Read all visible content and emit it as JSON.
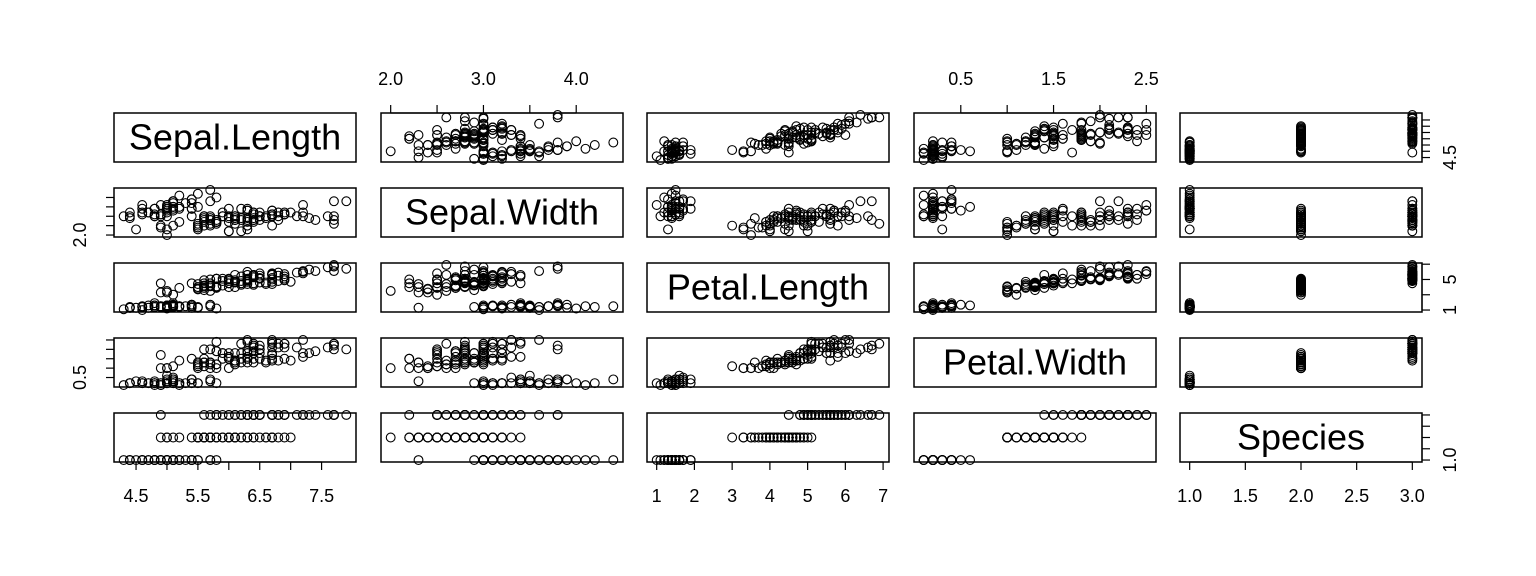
{
  "chart_data": {
    "type": "scatter",
    "subtype": "scatterplot-matrix",
    "variables": [
      "Sepal.Length",
      "Sepal.Width",
      "Petal.Length",
      "Petal.Width",
      "Species"
    ],
    "ranges": {
      "Sepal.Length": [
        4.3,
        7.9
      ],
      "Sepal.Width": [
        2.0,
        4.4
      ],
      "Petal.Length": [
        1.0,
        6.9
      ],
      "Petal.Width": [
        0.1,
        2.5
      ],
      "Species": [
        1,
        3
      ]
    },
    "axes": {
      "bottom": [
        {
          "variable": "Sepal.Length",
          "ticks": [
            4.5,
            5,
            5.5,
            6,
            6.5,
            7,
            7.5
          ],
          "labels": [
            "4.5",
            "",
            "5.5",
            "",
            "6.5",
            "",
            "7.5"
          ]
        },
        null,
        {
          "variable": "Petal.Length",
          "ticks": [
            1,
            2,
            3,
            4,
            5,
            6,
            7
          ],
          "labels": [
            "1",
            "2",
            "3",
            "4",
            "5",
            "6",
            "7"
          ]
        },
        null,
        {
          "variable": "Species",
          "ticks": [
            1,
            1.5,
            2,
            2.5,
            3
          ],
          "labels": [
            "1.0",
            "1.5",
            "2.0",
            "2.5",
            "3.0"
          ]
        }
      ],
      "top": [
        null,
        {
          "variable": "Sepal.Width",
          "ticks": [
            2,
            2.5,
            3,
            3.5,
            4
          ],
          "labels": [
            "2.0",
            "",
            "3.0",
            "",
            "4.0"
          ]
        },
        null,
        {
          "variable": "Petal.Width",
          "ticks": [
            0.5,
            1,
            1.5,
            2,
            2.5
          ],
          "labels": [
            "0.5",
            "",
            "1.5",
            "",
            "2.5"
          ]
        },
        null
      ],
      "left": [
        null,
        {
          "variable": "Sepal.Width",
          "ticks": [
            2,
            2.5,
            3,
            3.5,
            4
          ],
          "labels": [
            "2.0",
            "",
            "",
            "",
            ""
          ]
        },
        null,
        {
          "variable": "Petal.Width",
          "ticks": [
            0.5,
            1,
            1.5,
            2,
            2.5
          ],
          "labels": [
            "0.5",
            "",
            "",
            "",
            ""
          ]
        },
        null
      ],
      "right": [
        {
          "variable": "Sepal.Length",
          "ticks": [
            4.5,
            5,
            5.5,
            6,
            6.5,
            7,
            7.5
          ],
          "labels": [
            "4.5",
            "",
            "",
            "",
            "",
            "",
            ""
          ]
        },
        null,
        {
          "variable": "Petal.Length",
          "ticks": [
            1,
            3,
            5,
            7
          ],
          "labels": [
            "1",
            "",
            "5",
            ""
          ]
        },
        null,
        {
          "variable": "Species",
          "ticks": [
            1,
            1.5,
            2,
            2.5,
            3
          ],
          "labels": [
            "1.0",
            "",
            "",
            "",
            ""
          ]
        }
      ]
    },
    "data": {
      "Sepal.Length": [
        5.1,
        4.9,
        4.7,
        4.6,
        5.0,
        5.4,
        4.6,
        5.0,
        4.4,
        4.9,
        5.4,
        4.8,
        4.8,
        4.3,
        5.8,
        5.7,
        5.4,
        5.1,
        5.7,
        5.1,
        5.4,
        5.1,
        4.6,
        5.1,
        4.8,
        5.0,
        5.0,
        5.2,
        5.2,
        4.7,
        4.8,
        5.4,
        5.2,
        5.5,
        4.9,
        5.0,
        5.5,
        4.9,
        4.4,
        5.1,
        5.0,
        4.5,
        4.4,
        5.0,
        5.1,
        4.8,
        5.1,
        4.6,
        5.3,
        5.0,
        7.0,
        6.4,
        6.9,
        5.5,
        6.5,
        5.7,
        6.3,
        4.9,
        6.6,
        5.2,
        5.0,
        5.9,
        6.0,
        6.1,
        5.6,
        6.7,
        5.6,
        5.8,
        6.2,
        5.6,
        5.9,
        6.1,
        6.3,
        6.1,
        6.4,
        6.6,
        6.8,
        6.7,
        6.0,
        5.7,
        5.5,
        5.5,
        5.8,
        6.0,
        5.4,
        6.0,
        6.7,
        6.3,
        5.6,
        5.5,
        5.5,
        6.1,
        5.8,
        5.0,
        5.6,
        5.7,
        5.7,
        6.2,
        5.1,
        5.7,
        6.3,
        5.8,
        7.1,
        6.3,
        6.5,
        7.6,
        4.9,
        7.3,
        6.7,
        7.2,
        6.5,
        6.4,
        6.8,
        5.7,
        5.8,
        6.4,
        6.5,
        7.7,
        7.7,
        6.0,
        6.9,
        5.6,
        7.7,
        6.3,
        6.7,
        7.2,
        6.2,
        6.1,
        6.4,
        7.2,
        7.4,
        7.9,
        6.4,
        6.3,
        6.1,
        7.7,
        6.3,
        6.4,
        6.0,
        6.9,
        6.7,
        6.9,
        5.8,
        6.8,
        6.7,
        6.7,
        6.3,
        6.5,
        6.2,
        5.9
      ],
      "Sepal.Width": [
        3.5,
        3.0,
        3.2,
        3.1,
        3.6,
        3.9,
        3.4,
        3.4,
        2.9,
        3.1,
        3.7,
        3.4,
        3.0,
        3.0,
        4.0,
        4.4,
        3.9,
        3.5,
        3.8,
        3.8,
        3.4,
        3.7,
        3.6,
        3.3,
        3.4,
        3.0,
        3.4,
        3.5,
        3.4,
        3.2,
        3.1,
        3.4,
        4.1,
        4.2,
        3.1,
        3.2,
        3.5,
        3.6,
        3.0,
        3.4,
        3.5,
        2.3,
        3.2,
        3.5,
        3.8,
        3.0,
        3.8,
        3.2,
        3.7,
        3.3,
        3.2,
        3.2,
        3.1,
        2.3,
        2.8,
        2.8,
        3.3,
        2.4,
        2.9,
        2.7,
        2.0,
        3.0,
        2.2,
        2.9,
        2.9,
        3.1,
        3.0,
        2.7,
        2.2,
        2.5,
        3.2,
        2.8,
        2.5,
        2.8,
        2.9,
        3.0,
        2.8,
        3.0,
        2.9,
        2.6,
        2.4,
        2.4,
        2.7,
        2.7,
        3.0,
        3.4,
        3.1,
        2.3,
        3.0,
        2.5,
        2.6,
        3.0,
        2.6,
        2.3,
        2.7,
        3.0,
        2.9,
        2.9,
        2.5,
        2.8,
        3.3,
        2.7,
        3.0,
        2.9,
        3.0,
        3.0,
        2.5,
        2.9,
        2.5,
        3.6,
        3.2,
        2.7,
        3.0,
        2.5,
        2.8,
        3.2,
        3.0,
        3.8,
        2.6,
        2.2,
        3.2,
        2.8,
        2.8,
        2.7,
        3.3,
        3.2,
        2.8,
        3.0,
        2.8,
        3.0,
        2.8,
        3.8,
        2.8,
        2.8,
        2.6,
        3.0,
        3.4,
        3.1,
        3.0,
        3.1,
        3.1,
        3.1,
        2.7,
        3.2,
        3.3,
        3.0,
        2.5,
        3.0,
        3.4,
        3.0
      ],
      "Petal.Length": [
        1.4,
        1.4,
        1.3,
        1.5,
        1.4,
        1.7,
        1.4,
        1.5,
        1.4,
        1.5,
        1.5,
        1.6,
        1.4,
        1.1,
        1.2,
        1.5,
        1.3,
        1.4,
        1.7,
        1.5,
        1.7,
        1.5,
        1.0,
        1.7,
        1.9,
        1.6,
        1.6,
        1.5,
        1.4,
        1.6,
        1.6,
        1.5,
        1.5,
        1.4,
        1.5,
        1.2,
        1.3,
        1.4,
        1.3,
        1.5,
        1.3,
        1.3,
        1.3,
        1.6,
        1.9,
        1.4,
        1.6,
        1.4,
        1.5,
        1.4,
        4.7,
        4.5,
        4.9,
        4.0,
        4.6,
        4.5,
        4.7,
        3.3,
        4.6,
        3.9,
        3.5,
        4.2,
        4.0,
        4.7,
        3.6,
        4.4,
        4.5,
        4.1,
        4.5,
        3.9,
        4.8,
        4.0,
        4.9,
        4.7,
        4.3,
        4.4,
        4.8,
        5.0,
        4.5,
        3.5,
        3.8,
        3.7,
        3.9,
        5.1,
        4.5,
        4.5,
        4.7,
        4.4,
        4.1,
        4.0,
        4.4,
        4.6,
        4.0,
        3.3,
        4.2,
        4.2,
        4.2,
        4.3,
        3.0,
        4.1,
        6.0,
        5.1,
        5.9,
        5.6,
        5.8,
        6.6,
        4.5,
        6.3,
        5.8,
        6.1,
        5.1,
        5.3,
        5.5,
        5.0,
        5.1,
        5.3,
        5.5,
        6.7,
        6.9,
        5.0,
        5.7,
        4.9,
        6.7,
        4.9,
        5.7,
        6.0,
        4.8,
        4.9,
        5.6,
        5.8,
        6.1,
        6.4,
        5.6,
        5.1,
        5.6,
        6.1,
        5.6,
        5.5,
        4.8,
        5.4,
        5.6,
        5.1,
        5.1,
        5.9,
        5.7,
        5.2,
        5.0,
        5.2,
        5.4,
        5.1
      ],
      "Petal.Width": [
        0.2,
        0.2,
        0.2,
        0.2,
        0.2,
        0.4,
        0.3,
        0.2,
        0.2,
        0.1,
        0.2,
        0.2,
        0.1,
        0.1,
        0.2,
        0.4,
        0.4,
        0.3,
        0.3,
        0.3,
        0.2,
        0.4,
        0.2,
        0.5,
        0.2,
        0.2,
        0.4,
        0.2,
        0.2,
        0.2,
        0.2,
        0.4,
        0.1,
        0.2,
        0.2,
        0.2,
        0.2,
        0.1,
        0.2,
        0.2,
        0.3,
        0.3,
        0.2,
        0.6,
        0.4,
        0.3,
        0.2,
        0.2,
        0.2,
        0.2,
        1.4,
        1.5,
        1.5,
        1.3,
        1.5,
        1.3,
        1.6,
        1.0,
        1.3,
        1.4,
        1.0,
        1.5,
        1.0,
        1.4,
        1.3,
        1.4,
        1.5,
        1.0,
        1.5,
        1.1,
        1.8,
        1.3,
        1.5,
        1.2,
        1.3,
        1.4,
        1.4,
        1.7,
        1.5,
        1.0,
        1.1,
        1.0,
        1.2,
        1.6,
        1.5,
        1.6,
        1.5,
        1.3,
        1.3,
        1.3,
        1.2,
        1.4,
        1.2,
        1.0,
        1.3,
        1.2,
        1.3,
        1.3,
        1.1,
        1.3,
        2.5,
        1.9,
        2.1,
        1.8,
        2.2,
        2.1,
        1.7,
        1.8,
        1.8,
        2.5,
        2.0,
        1.9,
        2.1,
        2.0,
        2.4,
        2.3,
        1.8,
        2.2,
        2.3,
        1.5,
        2.3,
        2.0,
        2.0,
        1.8,
        2.1,
        1.8,
        1.8,
        1.8,
        2.1,
        1.6,
        1.9,
        2.0,
        2.2,
        1.5,
        1.4,
        2.3,
        2.4,
        1.8,
        1.8,
        2.1,
        2.4,
        2.3,
        1.9,
        2.3,
        2.5,
        2.3,
        1.9,
        2.0,
        2.3,
        1.8
      ],
      "Species": [
        1,
        1,
        1,
        1,
        1,
        1,
        1,
        1,
        1,
        1,
        1,
        1,
        1,
        1,
        1,
        1,
        1,
        1,
        1,
        1,
        1,
        1,
        1,
        1,
        1,
        1,
        1,
        1,
        1,
        1,
        1,
        1,
        1,
        1,
        1,
        1,
        1,
        1,
        1,
        1,
        1,
        1,
        1,
        1,
        1,
        1,
        1,
        1,
        1,
        1,
        2,
        2,
        2,
        2,
        2,
        2,
        2,
        2,
        2,
        2,
        2,
        2,
        2,
        2,
        2,
        2,
        2,
        2,
        2,
        2,
        2,
        2,
        2,
        2,
        2,
        2,
        2,
        2,
        2,
        2,
        2,
        2,
        2,
        2,
        2,
        2,
        2,
        2,
        2,
        2,
        2,
        2,
        2,
        2,
        2,
        2,
        2,
        2,
        2,
        2,
        3,
        3,
        3,
        3,
        3,
        3,
        3,
        3,
        3,
        3,
        3,
        3,
        3,
        3,
        3,
        3,
        3,
        3,
        3,
        3,
        3,
        3,
        3,
        3,
        3,
        3,
        3,
        3,
        3,
        3,
        3,
        3,
        3,
        3,
        3,
        3,
        3,
        3,
        3,
        3,
        3,
        3,
        3,
        3,
        3,
        3,
        3,
        3,
        3,
        3
      ]
    }
  }
}
